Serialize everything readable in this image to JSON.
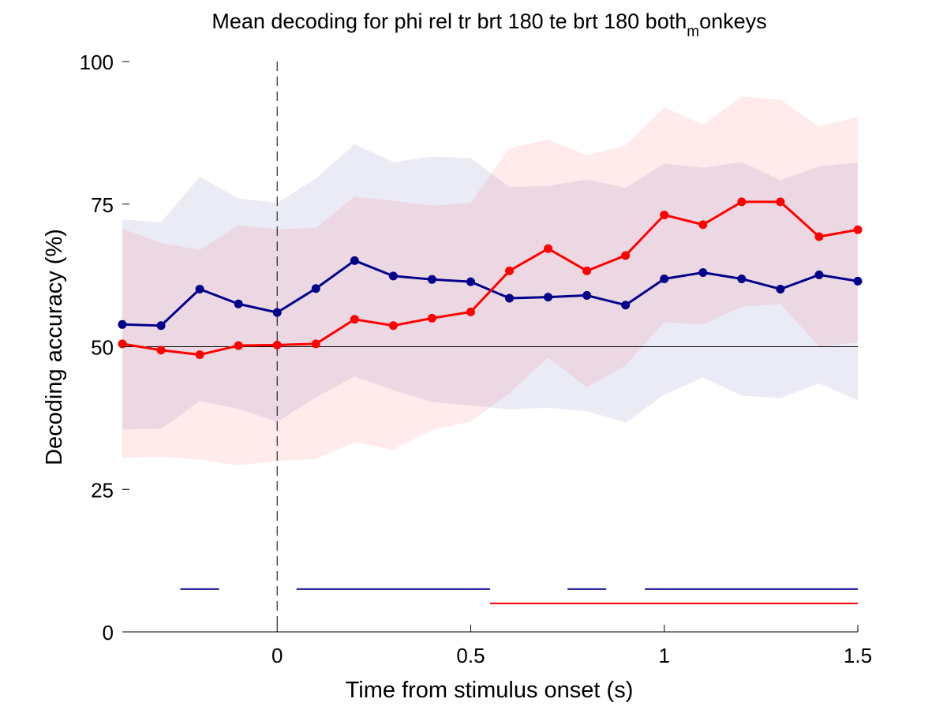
{
  "chart_data": {
    "type": "line",
    "title": "Mean decoding for phi rel tr brt 180 te brt 180  both",
    "title_subscript": "m",
    "title_tail": "onkeys",
    "xlabel": "Time from stimulus onset (s)",
    "ylabel": "Decoding accuracy (%)",
    "xlim": [
      -0.4,
      1.5
    ],
    "ylim": [
      0,
      100
    ],
    "xticks": [
      0,
      0.5,
      1,
      1.5
    ],
    "xtick_labels": [
      "0",
      "0.5",
      "1",
      "1.5"
    ],
    "yticks": [
      0,
      25,
      50,
      75,
      100
    ],
    "ytick_labels": [
      "0",
      "25",
      "50",
      "75",
      "100"
    ],
    "grid": false,
    "reference_lines": {
      "chance_level": 50,
      "stimulus_onset": 0
    },
    "x": [
      -0.4,
      -0.3,
      -0.2,
      -0.1,
      0,
      0.1,
      0.2,
      0.3,
      0.4,
      0.5,
      0.6,
      0.7,
      0.8,
      0.9,
      1.0,
      1.1,
      1.2,
      1.3,
      1.4,
      1.5
    ],
    "series": [
      {
        "color": "#00008b",
        "values": [
          53.9,
          53.7,
          60.1,
          57.5,
          56.0,
          60.2,
          65.1,
          62.4,
          61.8,
          61.4,
          58.5,
          58.7,
          59.0,
          57.3,
          61.9,
          63.0,
          61.9,
          60.1,
          62.6,
          61.5
        ],
        "band_upper": [
          72.3,
          71.8,
          79.8,
          76.0,
          75.2,
          79.5,
          85.5,
          82.4,
          83.3,
          83.1,
          78.0,
          78.2,
          79.3,
          77.9,
          82.1,
          81.4,
          82.4,
          79.2,
          81.6,
          82.3
        ],
        "band_lower": [
          35.5,
          35.6,
          40.5,
          39.1,
          36.8,
          41.1,
          44.8,
          42.4,
          40.3,
          39.7,
          39.0,
          39.3,
          38.7,
          36.7,
          41.6,
          44.6,
          41.4,
          41.0,
          43.6,
          40.6
        ],
        "significance_segments": [
          [
            -0.25,
            -0.15
          ],
          [
            0.05,
            0.55
          ],
          [
            0.75,
            0.85
          ],
          [
            0.95,
            1.5
          ]
        ],
        "significance_level": 7.5
      },
      {
        "color": "#ff0000",
        "values": [
          50.5,
          49.4,
          48.6,
          50.2,
          50.3,
          50.5,
          54.8,
          53.7,
          55.0,
          56.1,
          63.3,
          67.2,
          63.3,
          66.0,
          73.1,
          71.4,
          75.4,
          75.4,
          69.3,
          70.5
        ],
        "band_upper": [
          70.7,
          68.2,
          67.0,
          71.3,
          70.6,
          70.8,
          76.3,
          75.6,
          74.7,
          75.3,
          84.8,
          86.3,
          83.6,
          85.3,
          92.0,
          88.9,
          93.9,
          93.3,
          88.6,
          90.3
        ],
        "band_lower": [
          30.5,
          30.7,
          30.2,
          29.2,
          30.0,
          30.3,
          33.3,
          31.9,
          35.4,
          36.9,
          41.8,
          48.1,
          42.9,
          46.7,
          54.3,
          53.9,
          57.0,
          57.5,
          50.0,
          50.8
        ],
        "significance_segments": [
          [
            0.55,
            1.5
          ]
        ],
        "significance_level": 5.0
      }
    ]
  }
}
